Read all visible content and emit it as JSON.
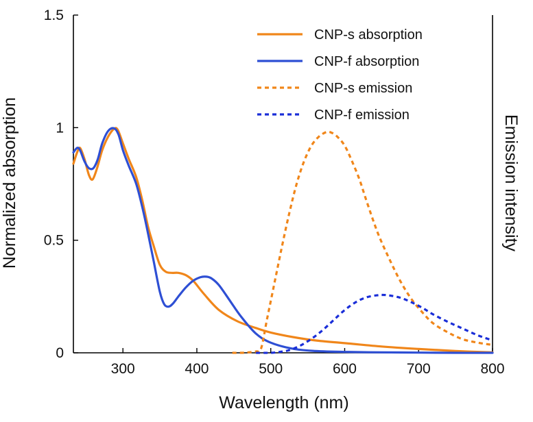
{
  "chart_data": {
    "type": "line",
    "title": "",
    "xlabel": "Wavelength (nm)",
    "ylabel": "Normalized absorption",
    "y2label": "Emission intensity",
    "xlim": [
      233,
      800
    ],
    "ylim": [
      0,
      1.5
    ],
    "x_ticks": [
      300,
      400,
      500,
      600,
      700,
      800
    ],
    "x_tick_labels": [
      "300",
      "400",
      "500",
      "600",
      "700",
      "800"
    ],
    "y_ticks": [
      0,
      0.5,
      1,
      1.5
    ],
    "y_tick_labels": [
      "0",
      "0.5",
      "1",
      "1.5"
    ],
    "legend_position": "top-right",
    "series": [
      {
        "name": "CNP-s absorption",
        "color": "#f0861a",
        "style": "solid",
        "x": [
          233,
          238,
          242,
          248,
          254,
          259,
          265,
          272,
          280,
          288,
          293,
          300,
          308,
          318,
          326,
          334,
          342,
          350,
          358,
          366,
          375,
          385,
          395,
          410,
          430,
          455,
          480,
          500,
          530,
          560,
          600,
          650,
          700,
          750,
          800
        ],
        "y": [
          0.84,
          0.89,
          0.91,
          0.86,
          0.79,
          0.77,
          0.82,
          0.9,
          0.96,
          0.995,
          0.99,
          0.93,
          0.86,
          0.78,
          0.68,
          0.56,
          0.47,
          0.39,
          0.36,
          0.355,
          0.355,
          0.345,
          0.32,
          0.26,
          0.19,
          0.14,
          0.11,
          0.09,
          0.07,
          0.055,
          0.043,
          0.028,
          0.017,
          0.008,
          0.002
        ]
      },
      {
        "name": "CNP-f absorption",
        "color": "#2e4fd4",
        "style": "solid",
        "x": [
          233,
          238,
          242,
          248,
          254,
          260,
          266,
          272,
          280,
          288,
          294,
          300,
          308,
          318,
          326,
          334,
          342,
          350,
          356,
          362,
          368,
          375,
          385,
          395,
          405,
          413,
          420,
          430,
          445,
          460,
          480,
          500,
          530,
          560,
          600,
          650,
          700,
          750,
          800
        ],
        "y": [
          0.89,
          0.91,
          0.9,
          0.85,
          0.82,
          0.82,
          0.86,
          0.93,
          0.985,
          0.997,
          0.97,
          0.9,
          0.83,
          0.75,
          0.65,
          0.53,
          0.4,
          0.27,
          0.215,
          0.205,
          0.22,
          0.25,
          0.29,
          0.32,
          0.336,
          0.338,
          0.33,
          0.3,
          0.23,
          0.16,
          0.085,
          0.045,
          0.018,
          0.008,
          0.004,
          0.002,
          0.001,
          0.0,
          0.0
        ]
      },
      {
        "name": "CNP-s emission",
        "color": "#f0861a",
        "style": "dashed",
        "x": [
          448,
          460,
          470,
          480,
          487,
          495,
          505,
          515,
          525,
          535,
          545,
          555,
          565,
          575,
          582,
          590,
          600,
          610,
          620,
          630,
          645,
          660,
          675,
          690,
          705,
          720,
          740,
          760,
          780,
          800
        ],
        "y": [
          0.0,
          0.0,
          0.002,
          0.006,
          0.02,
          0.15,
          0.31,
          0.47,
          0.62,
          0.75,
          0.85,
          0.92,
          0.96,
          0.98,
          0.978,
          0.96,
          0.92,
          0.85,
          0.77,
          0.67,
          0.53,
          0.42,
          0.32,
          0.24,
          0.18,
          0.13,
          0.09,
          0.06,
          0.045,
          0.035
        ]
      },
      {
        "name": "CNP-f emission",
        "color": "#1a2ed8",
        "style": "dashed",
        "x": [
          480,
          500,
          512,
          525,
          540,
          555,
          570,
          585,
          600,
          615,
          630,
          645,
          652,
          660,
          675,
          690,
          705,
          720,
          740,
          760,
          780,
          800
        ],
        "y": [
          0.0,
          0.0,
          0.004,
          0.012,
          0.032,
          0.062,
          0.1,
          0.145,
          0.19,
          0.225,
          0.247,
          0.256,
          0.257,
          0.255,
          0.245,
          0.225,
          0.2,
          0.17,
          0.137,
          0.107,
          0.078,
          0.055
        ]
      }
    ]
  }
}
